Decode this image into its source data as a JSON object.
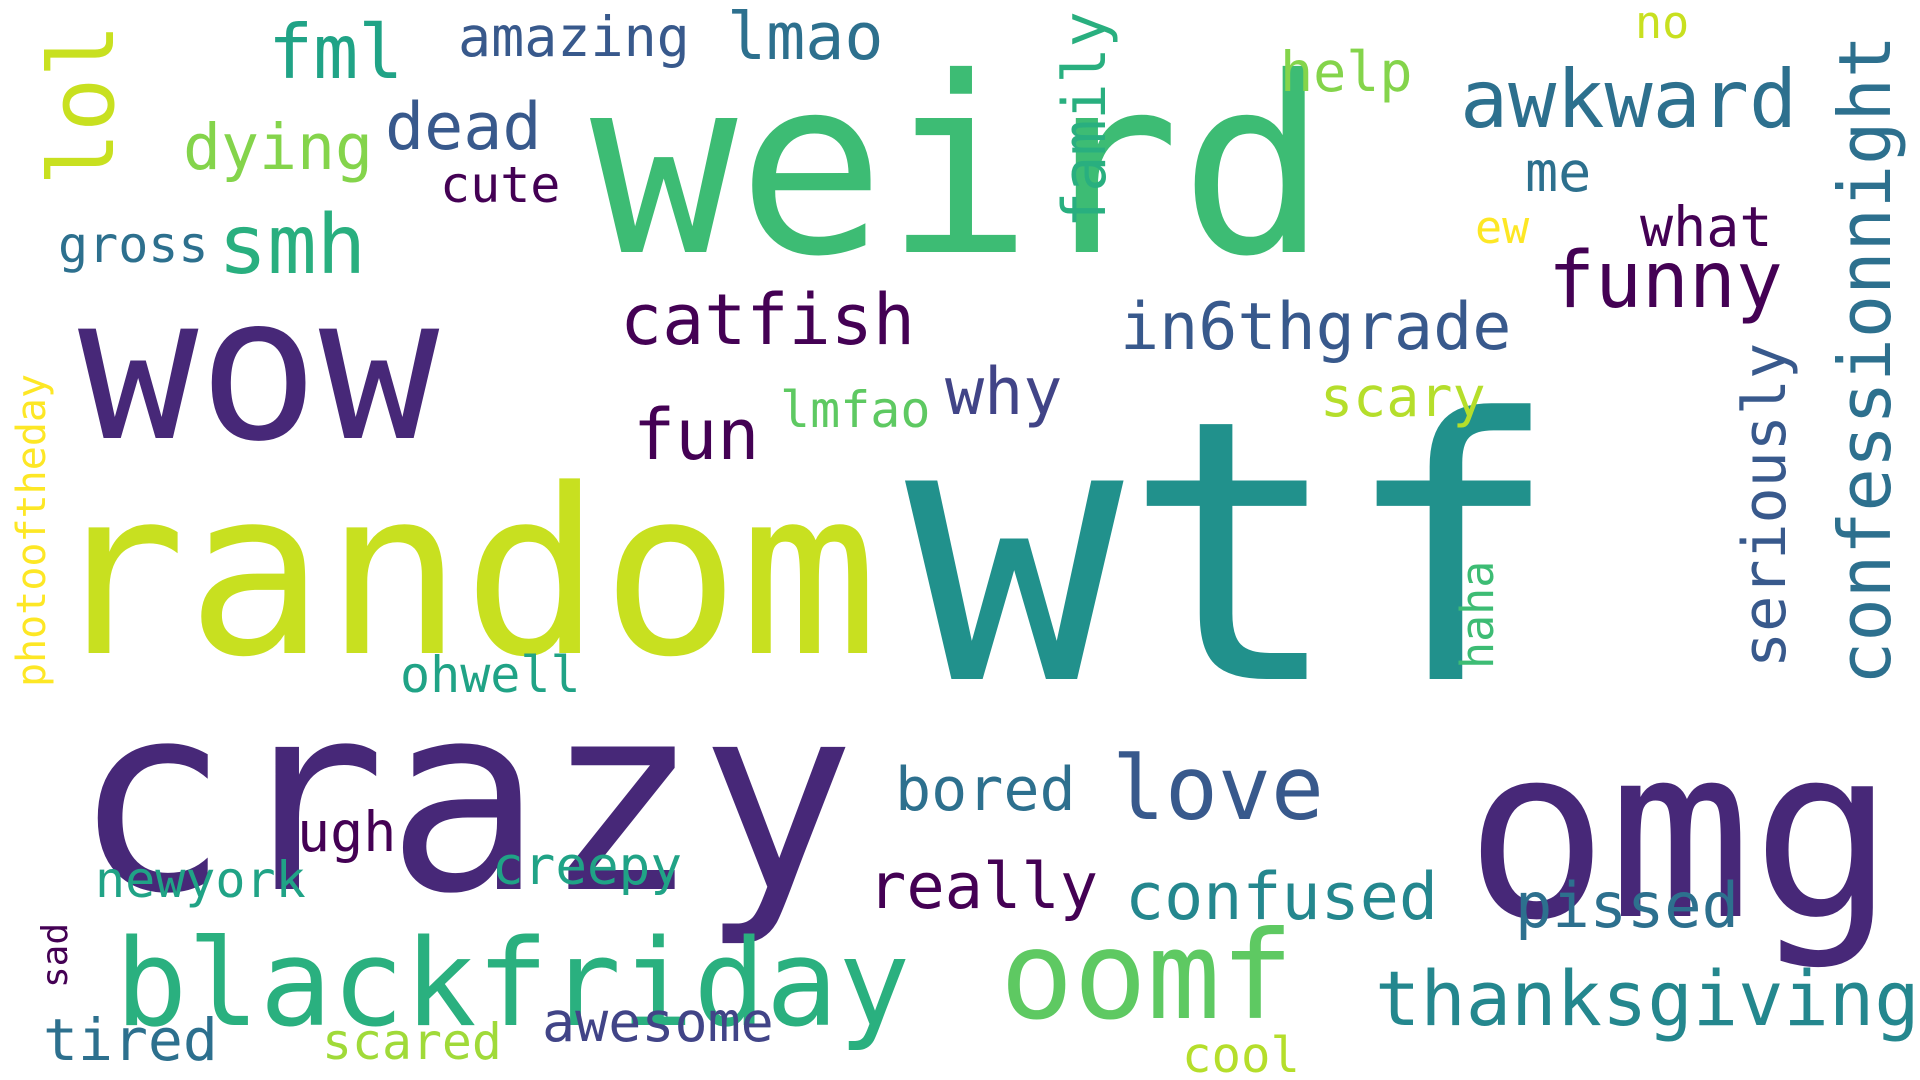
{
  "palette": {
    "dark_purple": "#482475",
    "indigo": "#453781",
    "slate_blue": "#38598c",
    "steel_blue": "#2d708e",
    "teal": "#1f968b",
    "green_teal": "#20a386",
    "sea_green": "#29af7f",
    "green": "#3fbc73",
    "light_green": "#5ec962",
    "lime": "#84d44b",
    "yellow_green": "#c8e020",
    "yellow": "#fde725",
    "deep_purple": "#440154"
  },
  "words": [
    {
      "id": "wtf",
      "text": "wtf",
      "color": "#21918c"
    },
    {
      "id": "weird",
      "text": "weird",
      "color": "#3dbc74"
    },
    {
      "id": "wow",
      "text": "wow",
      "color": "#472878"
    },
    {
      "id": "random",
      "text": "random",
      "color": "#c8e020"
    },
    {
      "id": "crazy",
      "text": "crazy",
      "color": "#472878"
    },
    {
      "id": "omg",
      "text": "omg",
      "color": "#472878"
    },
    {
      "id": "blackfriday",
      "text": "blackfriday",
      "color": "#2ab07f"
    },
    {
      "id": "oomf",
      "text": "oomf",
      "color": "#5ec962"
    },
    {
      "id": "thanksgiving",
      "text": "thanksgiving",
      "color": "#24878e"
    },
    {
      "id": "confessionnight",
      "text": "confessionnight",
      "color": "#2d708e"
    },
    {
      "id": "seriously",
      "text": "seriously",
      "color": "#38598c"
    },
    {
      "id": "awkward",
      "text": "awkward",
      "color": "#2d708e"
    },
    {
      "id": "funny",
      "text": "funny",
      "color": "#440154"
    },
    {
      "id": "in6thgrade",
      "text": "in6thgrade",
      "color": "#38598c"
    },
    {
      "id": "catfish",
      "text": "catfish",
      "color": "#440154"
    },
    {
      "id": "love",
      "text": "love",
      "color": "#38598c"
    },
    {
      "id": "confused",
      "text": "confused",
      "color": "#24878e"
    },
    {
      "id": "really",
      "text": "really",
      "color": "#440154"
    },
    {
      "id": "lol",
      "text": "lol",
      "color": "#c8e020"
    },
    {
      "id": "smh",
      "text": "smh",
      "color": "#29af7f"
    },
    {
      "id": "fml",
      "text": "fml",
      "color": "#20a386"
    },
    {
      "id": "lmao",
      "text": "lmao",
      "color": "#2d708e"
    },
    {
      "id": "amazing",
      "text": "amazing",
      "color": "#38598c"
    },
    {
      "id": "dead",
      "text": "dead",
      "color": "#38598c"
    },
    {
      "id": "dying",
      "text": "dying",
      "color": "#84d44b"
    },
    {
      "id": "family",
      "text": "family",
      "color": "#29af7f"
    },
    {
      "id": "why",
      "text": "why",
      "color": "#414487"
    },
    {
      "id": "fun",
      "text": "fun",
      "color": "#440154"
    },
    {
      "id": "bored",
      "text": "bored",
      "color": "#2d708e"
    },
    {
      "id": "pissed",
      "text": "pissed",
      "color": "#2d708e"
    },
    {
      "id": "haha",
      "text": "haha",
      "color": "#3dbc74"
    },
    {
      "id": "scary",
      "text": "scary",
      "color": "#b5de2b"
    },
    {
      "id": "help",
      "text": "help",
      "color": "#84d44b"
    },
    {
      "id": "me",
      "text": "me",
      "color": "#2d708e"
    },
    {
      "id": "what",
      "text": "what",
      "color": "#440154"
    },
    {
      "id": "ew",
      "text": "ew",
      "color": "#fde725"
    },
    {
      "id": "no",
      "text": "no",
      "color": "#c8e020"
    },
    {
      "id": "cute",
      "text": "cute",
      "color": "#440154"
    },
    {
      "id": "gross",
      "text": "gross",
      "color": "#2d708e"
    },
    {
      "id": "photooftheday",
      "text": "photooftheday",
      "color": "#fde725"
    },
    {
      "id": "lmfao",
      "text": "lmfao",
      "color": "#5ec962"
    },
    {
      "id": "ohwell",
      "text": "ohwell",
      "color": "#20a386"
    },
    {
      "id": "ugh",
      "text": "ugh",
      "color": "#440154"
    },
    {
      "id": "creepy",
      "text": "creepy",
      "color": "#20a386"
    },
    {
      "id": "newyork",
      "text": "newyork",
      "color": "#20a386"
    },
    {
      "id": "sad",
      "text": "sad",
      "color": "#440154"
    },
    {
      "id": "tired",
      "text": "tired",
      "color": "#2d708e"
    },
    {
      "id": "scared",
      "text": "scared",
      "color": "#a0da39"
    },
    {
      "id": "awesome",
      "text": "awesome",
      "color": "#414487"
    },
    {
      "id": "cool",
      "text": "cool",
      "color": "#b5de2b"
    }
  ]
}
